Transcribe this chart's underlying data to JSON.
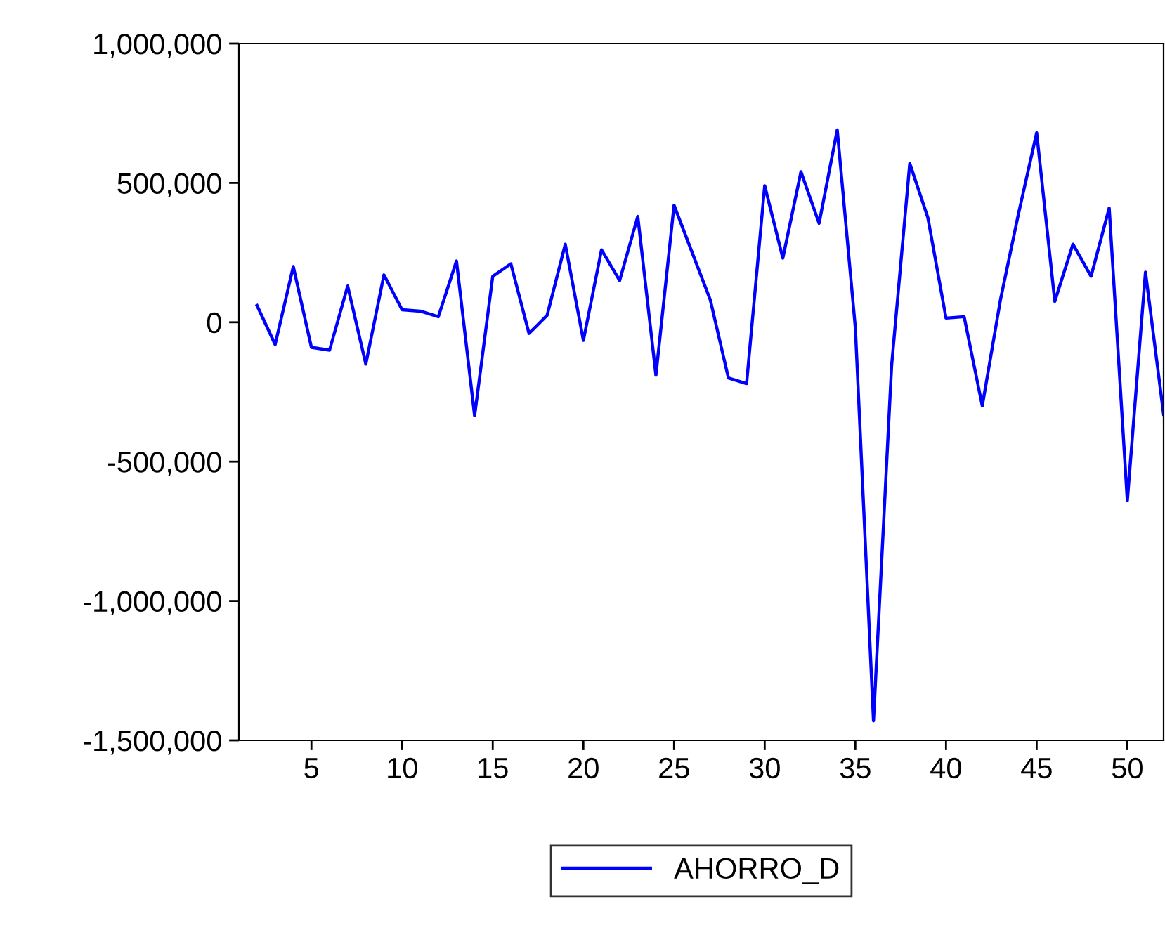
{
  "chart_data": {
    "type": "line",
    "x": [
      2,
      3,
      4,
      5,
      6,
      7,
      8,
      9,
      10,
      11,
      12,
      13,
      14,
      15,
      16,
      17,
      18,
      19,
      20,
      21,
      22,
      23,
      24,
      25,
      26,
      27,
      28,
      29,
      30,
      31,
      32,
      33,
      34,
      35,
      36,
      37,
      38,
      39,
      40,
      41,
      42,
      43,
      44,
      45,
      46,
      47,
      48,
      49,
      50,
      51,
      52
    ],
    "series": [
      {
        "name": "AHORRO_D",
        "color": "#0000ff",
        "values": [
          60000,
          -80000,
          200000,
          -90000,
          -100000,
          130000,
          -150000,
          170000,
          45000,
          40000,
          20000,
          220000,
          -335000,
          165000,
          210000,
          -40000,
          25000,
          280000,
          -65000,
          260000,
          150000,
          380000,
          -190000,
          420000,
          250000,
          80000,
          -200000,
          -220000,
          490000,
          230000,
          540000,
          355000,
          690000,
          -20000,
          -1430000,
          -155000,
          570000,
          375000,
          15000,
          20000,
          -300000,
          80000,
          390000,
          680000,
          75000,
          280000,
          165000,
          410000,
          -640000,
          180000,
          -330000
        ]
      }
    ],
    "xlim": [
      1,
      52
    ],
    "ylim": [
      -1500000,
      1000000
    ],
    "xticks": [
      5,
      10,
      15,
      20,
      25,
      30,
      35,
      40,
      45,
      50
    ],
    "yticks": [
      {
        "value": -1500000,
        "label": "-1,500,000"
      },
      {
        "value": -1000000,
        "label": "-1,000,000"
      },
      {
        "value": -500000,
        "label": "-500,000"
      },
      {
        "value": 0,
        "label": "0"
      },
      {
        "value": 500000,
        "label": "500,000"
      },
      {
        "value": 1000000,
        "label": "1,000,000"
      }
    ],
    "grid": false,
    "legend": "bottom",
    "line_style": "solid",
    "marker": "none"
  }
}
